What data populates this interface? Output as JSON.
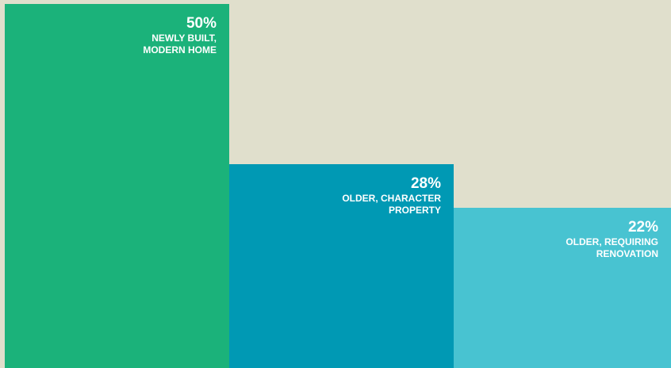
{
  "chart_data": {
    "type": "bar",
    "categories": [
      "NEWLY BUILT,\nMODERN HOME",
      "OLDER, CHARACTER\nPROPERTY",
      "OLDER, REQUIRING\nRENOVATION"
    ],
    "values": [
      50,
      28,
      22
    ],
    "value_labels": [
      "50%",
      "28%",
      "22%"
    ],
    "colors": [
      "#1bb27a",
      "#0099b4",
      "#48c3d1"
    ],
    "ylim": [
      0,
      50
    ]
  }
}
